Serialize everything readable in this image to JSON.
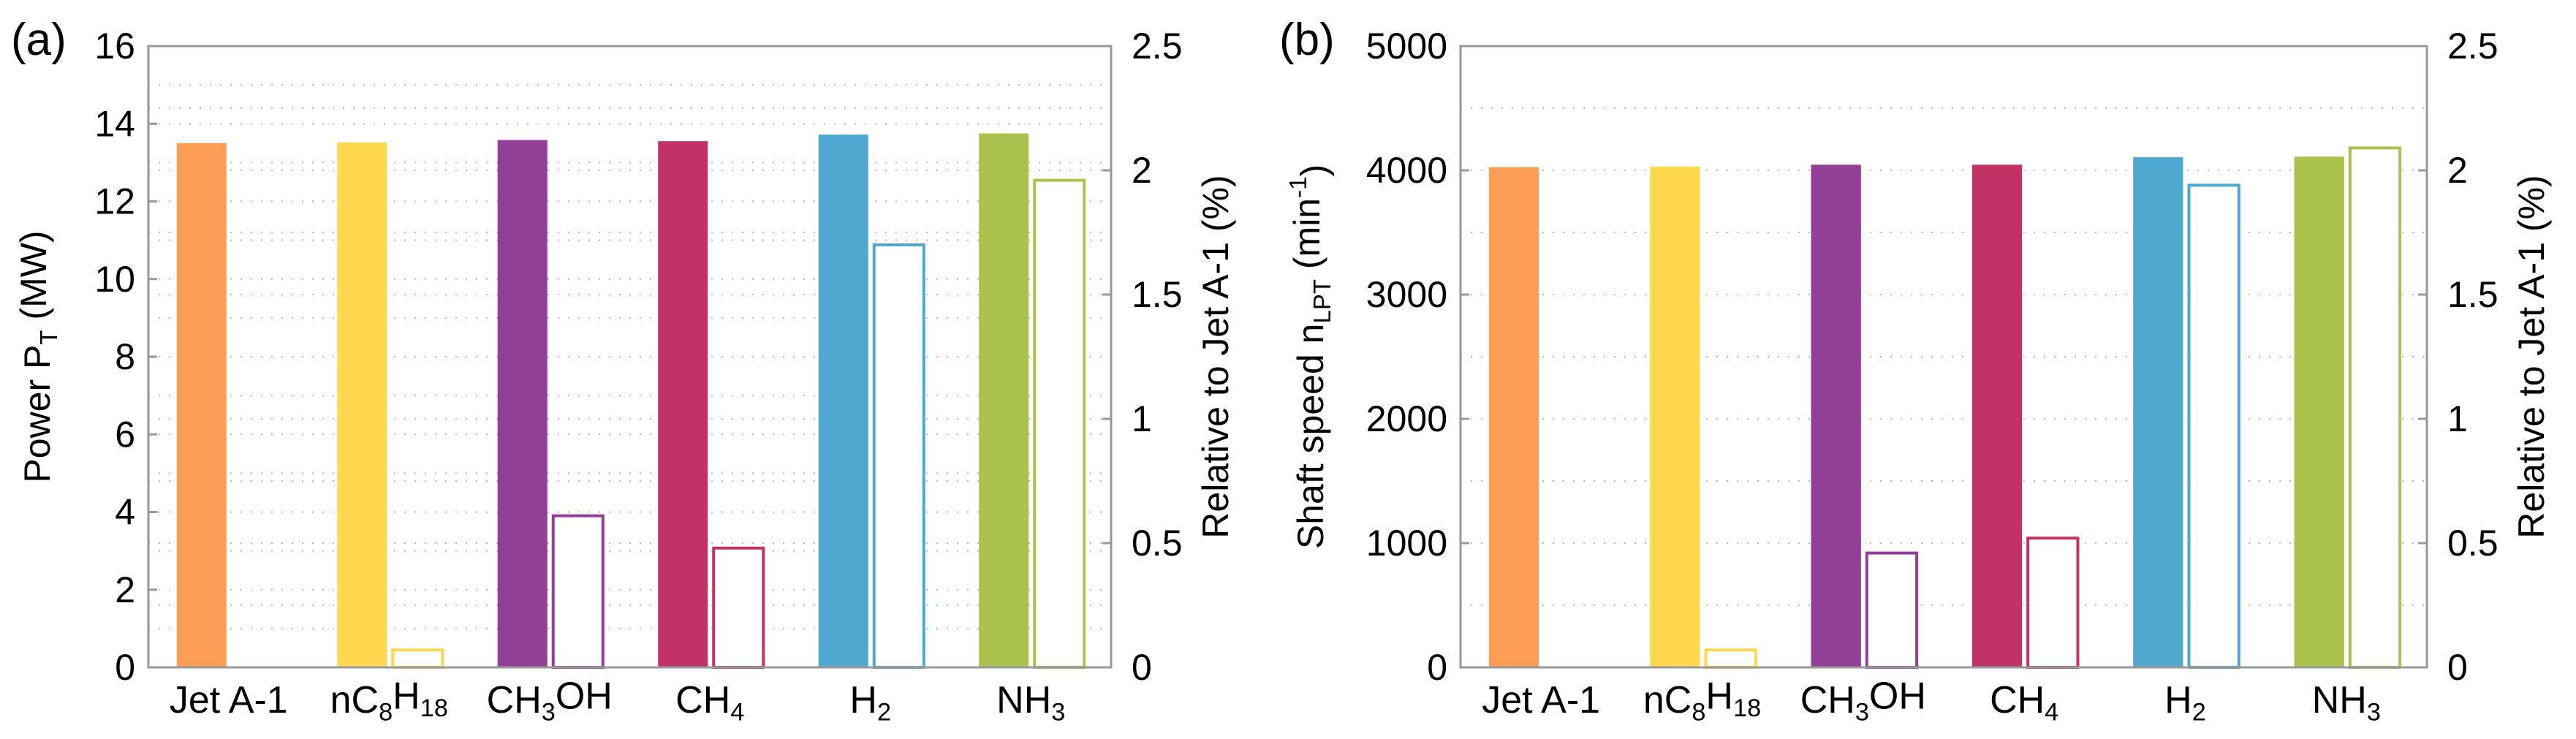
{
  "chart_data": [
    {
      "type": "bar",
      "panel_label": "(a)",
      "categories": [
        {
          "base": "Jet A-1",
          "parts": [
            {
              "t": "Jet A-1",
              "s": false
            }
          ]
        },
        {
          "base": "nC8H18",
          "parts": [
            {
              "t": "nC",
              "s": false
            },
            {
              "t": "8",
              "s": true
            },
            {
              "t": "H",
              "s": false
            },
            {
              "t": "18",
              "s": true
            }
          ]
        },
        {
          "base": "CH3OH",
          "parts": [
            {
              "t": "CH",
              "s": false
            },
            {
              "t": "3",
              "s": true
            },
            {
              "t": "OH",
              "s": false
            }
          ]
        },
        {
          "base": "CH4",
          "parts": [
            {
              "t": "CH",
              "s": false
            },
            {
              "t": "4",
              "s": true
            }
          ]
        },
        {
          "base": "H2",
          "parts": [
            {
              "t": "H",
              "s": false
            },
            {
              "t": "2",
              "s": true
            }
          ]
        },
        {
          "base": "NH3",
          "parts": [
            {
              "t": "NH",
              "s": false
            },
            {
              "t": "3",
              "s": true
            }
          ]
        }
      ],
      "colors": [
        "#fb9d52",
        "#ffd84f",
        "#943f97",
        "#c13366",
        "#4ea8cf",
        "#abc24d"
      ],
      "series": [
        {
          "name": "Power P_T (MW)",
          "axis": "left",
          "style": "filled",
          "values": [
            13.5,
            13.52,
            13.58,
            13.55,
            13.72,
            13.75
          ]
        },
        {
          "name": "Relative to Jet A-1 (%)",
          "axis": "right",
          "style": "outline",
          "values": [
            0,
            0.07,
            0.61,
            0.48,
            1.7,
            1.96
          ]
        }
      ],
      "ylabel_left": {
        "parts": [
          {
            "t": "Power P",
            "s": false
          },
          {
            "t": "T",
            "s": true
          },
          {
            "t": " (MW)",
            "s": false
          }
        ]
      },
      "ylabel_right": "Relative to Jet A-1 (%)",
      "ylim_left": [
        0,
        16
      ],
      "ylim_right": [
        0,
        2.5
      ],
      "yticks_left": [
        "0",
        "2",
        "4",
        "6",
        "8",
        "10",
        "12",
        "14",
        "16"
      ],
      "yticks_right": [
        "0",
        "0.5",
        "1",
        "1.5",
        "2",
        "2.5"
      ],
      "grid": "dotted"
    },
    {
      "type": "bar",
      "panel_label": "(b)",
      "categories": [
        {
          "base": "Jet A-1",
          "parts": [
            {
              "t": "Jet A-1",
              "s": false
            }
          ]
        },
        {
          "base": "nC8H18",
          "parts": [
            {
              "t": "nC",
              "s": false
            },
            {
              "t": "8",
              "s": true
            },
            {
              "t": "H",
              "s": false
            },
            {
              "t": "18",
              "s": true
            }
          ]
        },
        {
          "base": "CH3OH",
          "parts": [
            {
              "t": "CH",
              "s": false
            },
            {
              "t": "3",
              "s": true
            },
            {
              "t": "OH",
              "s": false
            }
          ]
        },
        {
          "base": "CH4",
          "parts": [
            {
              "t": "CH",
              "s": false
            },
            {
              "t": "4",
              "s": true
            }
          ]
        },
        {
          "base": "H2",
          "parts": [
            {
              "t": "H",
              "s": false
            },
            {
              "t": "2",
              "s": true
            }
          ]
        },
        {
          "base": "NH3",
          "parts": [
            {
              "t": "NH",
              "s": false
            },
            {
              "t": "3",
              "s": true
            }
          ]
        }
      ],
      "colors": [
        "#fb9d52",
        "#ffd84f",
        "#943f97",
        "#c13366",
        "#4ea8cf",
        "#abc24d"
      ],
      "series": [
        {
          "name": "Shaft speed n_LPT (min^-1)",
          "axis": "left",
          "style": "filled",
          "values": [
            4025,
            4030,
            4045,
            4045,
            4105,
            4110
          ]
        },
        {
          "name": "Relative to Jet A-1 (%)",
          "axis": "right",
          "style": "outline",
          "values": [
            0,
            0.07,
            0.46,
            0.52,
            1.94,
            2.09
          ]
        }
      ],
      "ylabel_left": {
        "parts": [
          {
            "t": "Shaft speed n",
            "s": false
          },
          {
            "t": "LPT",
            "s": true
          },
          {
            "t": " (min",
            "s": false
          },
          {
            "t": "-1",
            "s": "sup"
          },
          {
            "t": ")",
            "s": false
          }
        ]
      },
      "ylabel_right": "Relative to Jet A-1 (%)",
      "ylim_left": [
        0,
        5000
      ],
      "ylim_right": [
        0,
        2.5
      ],
      "yticks_left": [
        "0",
        "1000",
        "2000",
        "3000",
        "4000",
        "5000"
      ],
      "yticks_right": [
        "0",
        "0.5",
        "1",
        "1.5",
        "2",
        "2.5"
      ],
      "grid": "dotted"
    }
  ]
}
